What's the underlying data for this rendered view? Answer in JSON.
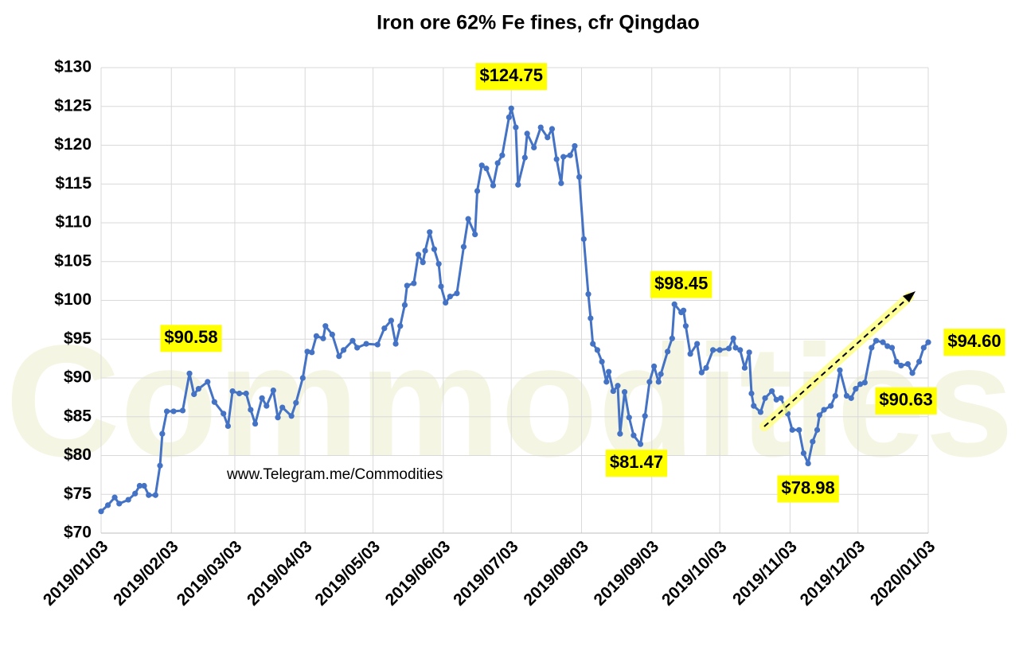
{
  "chart_data": {
    "type": "line",
    "title": "Iron ore 62% Fe fines, cfr Qingdao",
    "source_text": "www.Telegram.me/Commodities",
    "watermark": "Commodities",
    "grid": true,
    "xlim": [
      "2019/01/03",
      "2020/01/03"
    ],
    "xticks": [
      "2019/01/03",
      "2019/02/03",
      "2019/03/03",
      "2019/04/03",
      "2019/05/03",
      "2019/06/03",
      "2019/07/03",
      "2019/08/03",
      "2019/09/03",
      "2019/10/03",
      "2019/11/03",
      "2019/12/03",
      "2020/01/03"
    ],
    "ylim": [
      70,
      130
    ],
    "yticks": [
      {
        "value": 70,
        "label": "$70"
      },
      {
        "value": 75,
        "label": "$75"
      },
      {
        "value": 80,
        "label": "$80"
      },
      {
        "value": 85,
        "label": "$85"
      },
      {
        "value": 90,
        "label": "$90"
      },
      {
        "value": 95,
        "label": "$95"
      },
      {
        "value": 100,
        "label": "$100"
      },
      {
        "value": 105,
        "label": "$105"
      },
      {
        "value": 110,
        "label": "$110"
      },
      {
        "value": 115,
        "label": "$115"
      },
      {
        "value": 120,
        "label": "$120"
      },
      {
        "value": 125,
        "label": "$125"
      },
      {
        "value": 130,
        "label": "$130"
      }
    ],
    "series": [
      {
        "color": "#4472c4",
        "x": [
          "2019/01/03",
          "2019/01/06",
          "2019/01/09",
          "2019/01/11",
          "2019/01/15",
          "2019/01/18",
          "2019/01/20",
          "2019/01/22",
          "2019/01/24",
          "2019/01/27",
          "2019/01/29",
          "2019/01/30",
          "2019/02/01",
          "2019/02/04",
          "2019/02/08",
          "2019/02/11",
          "2019/02/13",
          "2019/02/15",
          "2019/02/19",
          "2019/02/22",
          "2019/02/26",
          "2019/02/28",
          "2019/03/02",
          "2019/03/05",
          "2019/03/08",
          "2019/03/10",
          "2019/03/12",
          "2019/03/15",
          "2019/03/17",
          "2019/03/20",
          "2019/03/22",
          "2019/03/24",
          "2019/03/28",
          "2019/03/30",
          "2019/04/02",
          "2019/04/04",
          "2019/04/06",
          "2019/04/08",
          "2019/04/11",
          "2019/04/12",
          "2019/04/15",
          "2019/04/18",
          "2019/04/20",
          "2019/04/24",
          "2019/04/26",
          "2019/04/30",
          "2019/05/05",
          "2019/05/08",
          "2019/05/11",
          "2019/05/13",
          "2019/05/15",
          "2019/05/17",
          "2019/05/18",
          "2019/05/21",
          "2019/05/23",
          "2019/05/25",
          "2019/05/26",
          "2019/05/28",
          "2019/05/30",
          "2019/06/01",
          "2019/06/02",
          "2019/06/04",
          "2019/06/06",
          "2019/06/09",
          "2019/06/12",
          "2019/06/14",
          "2019/06/17",
          "2019/06/18",
          "2019/06/20",
          "2019/06/22",
          "2019/06/25",
          "2019/06/27",
          "2019/06/29",
          "2019/07/02",
          "2019/07/03",
          "2019/07/05",
          "2019/07/06",
          "2019/07/09",
          "2019/07/10",
          "2019/07/13",
          "2019/07/16",
          "2019/07/19",
          "2019/07/21",
          "2019/07/23",
          "2019/07/25",
          "2019/07/26",
          "2019/07/29",
          "2019/07/31",
          "2019/08/02",
          "2019/08/04",
          "2019/08/06",
          "2019/08/07",
          "2019/08/08",
          "2019/08/10",
          "2019/08/12",
          "2019/08/14",
          "2019/08/15",
          "2019/08/17",
          "2019/08/19",
          "2019/08/20",
          "2019/08/22",
          "2019/08/24",
          "2019/08/26",
          "2019/08/29",
          "2019/08/31",
          "2019/09/02",
          "2019/09/04",
          "2019/09/06",
          "2019/09/07",
          "2019/09/10",
          "2019/09/12",
          "2019/09/13",
          "2019/09/16",
          "2019/09/17",
          "2019/09/18",
          "2019/09/20",
          "2019/09/23",
          "2019/09/25",
          "2019/09/27",
          "2019/09/30",
          "2019/10/03",
          "2019/10/07",
          "2019/10/09",
          "2019/10/10",
          "2019/10/12",
          "2019/10/14",
          "2019/10/16",
          "2019/10/17",
          "2019/10/18",
          "2019/10/21",
          "2019/10/23",
          "2019/10/26",
          "2019/10/28",
          "2019/10/30",
          "2019/11/02",
          "2019/11/04",
          "2019/11/07",
          "2019/11/09",
          "2019/11/11",
          "2019/11/13",
          "2019/11/15",
          "2019/11/16",
          "2019/11/18",
          "2019/11/21",
          "2019/11/23",
          "2019/11/25",
          "2019/11/28",
          "2019/11/30",
          "2019/12/02",
          "2019/12/04",
          "2019/12/06",
          "2019/12/09",
          "2019/12/11",
          "2019/12/14",
          "2019/12/16",
          "2019/12/18",
          "2019/12/20",
          "2019/12/22",
          "2019/12/25",
          "2019/12/27",
          "2019/12/30",
          "2020/01/01",
          "2020/01/03"
        ],
        "values": [
          72.8,
          73.6,
          74.6,
          73.8,
          74.3,
          75.1,
          76.1,
          76.1,
          74.9,
          74.9,
          78.7,
          82.8,
          85.7,
          85.7,
          85.8,
          90.58,
          87.9,
          88.6,
          89.5,
          86.9,
          85.4,
          83.8,
          88.3,
          88.0,
          88.0,
          85.9,
          84.1,
          87.4,
          86.4,
          88.4,
          84.9,
          86.2,
          85.1,
          86.8,
          90.0,
          93.4,
          93.3,
          95.4,
          95.1,
          96.7,
          95.6,
          92.8,
          93.6,
          94.8,
          93.9,
          94.4,
          94.3,
          96.4,
          97.4,
          94.4,
          96.7,
          99.4,
          101.9,
          102.2,
          105.9,
          104.9,
          106.4,
          108.8,
          106.6,
          104.7,
          101.8,
          99.7,
          100.5,
          100.9,
          106.9,
          110.5,
          108.5,
          114.1,
          117.4,
          117.0,
          114.8,
          117.7,
          118.7,
          123.6,
          124.75,
          122.3,
          114.9,
          118.4,
          121.5,
          119.7,
          122.3,
          121.0,
          122.1,
          118.2,
          115.1,
          118.5,
          118.7,
          119.9,
          115.9,
          107.9,
          100.8,
          97.7,
          94.4,
          93.6,
          92.1,
          89.5,
          90.8,
          88.3,
          89.0,
          82.8,
          88.2,
          84.9,
          82.6,
          81.47,
          85.1,
          89.5,
          91.5,
          89.5,
          90.5,
          93.4,
          95.1,
          99.5,
          98.45,
          98.7,
          96.7,
          93.1,
          94.4,
          90.7,
          91.3,
          93.6,
          93.6,
          93.8,
          95.1,
          93.9,
          93.6,
          91.3,
          93.3,
          88.0,
          86.4,
          85.6,
          87.4,
          88.3,
          87.2,
          87.4,
          85.4,
          83.3,
          83.3,
          80.3,
          78.98,
          81.8,
          83.3,
          85.2,
          85.9,
          86.4,
          87.7,
          91.0,
          87.7,
          87.4,
          88.6,
          89.2,
          89.4,
          93.9,
          94.8,
          94.6,
          94.1,
          93.9,
          92.1,
          91.6,
          91.8,
          90.63,
          92.1,
          93.9,
          94.6
        ]
      }
    ],
    "annotations": [
      {
        "x": "2019/02/11",
        "value": 90.58,
        "label": "$90.58"
      },
      {
        "x": "2019/07/03",
        "value": 124.75,
        "label": "$124.75"
      },
      {
        "x": "2019/09/16",
        "value": 98.45,
        "label": "$98.45"
      },
      {
        "x": "2019/08/29",
        "value": 81.47,
        "label": "$81.47"
      },
      {
        "x": "2019/11/11",
        "value": 78.98,
        "label": "$78.98"
      },
      {
        "x": "2019/12/27",
        "value": 90.63,
        "label": "$90.63"
      },
      {
        "x": "2020/01/03",
        "value": 94.6,
        "label": "$94.60"
      }
    ]
  }
}
